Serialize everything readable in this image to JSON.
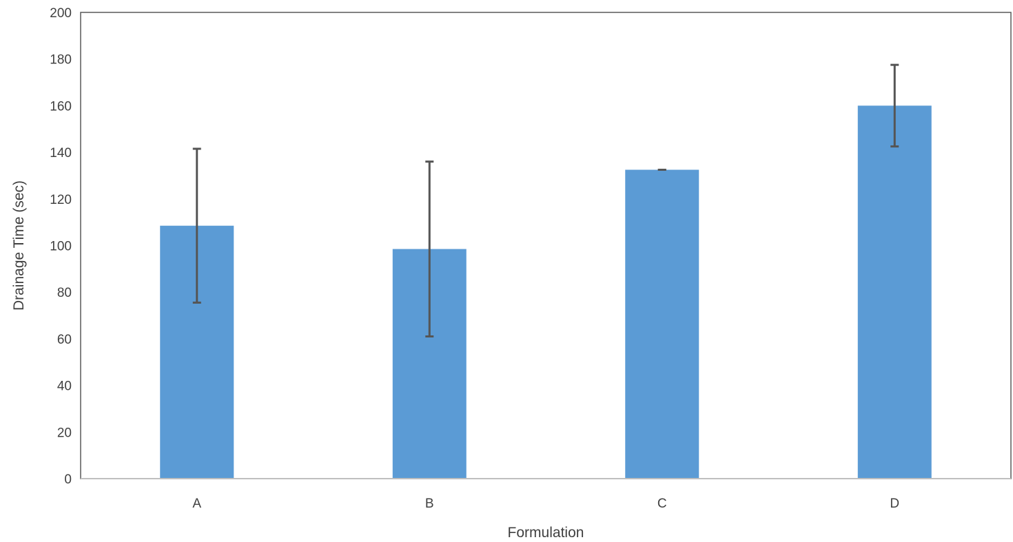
{
  "chart_data": {
    "type": "bar",
    "title": "",
    "xlabel": "Formulation",
    "ylabel": "Drainage Time (sec)",
    "categories": [
      "A",
      "B",
      "C",
      "D"
    ],
    "values": [
      108.5,
      98.5,
      132.5,
      160
    ],
    "error": [
      33,
      37.5,
      0,
      17.5
    ],
    "ylim": [
      0,
      200
    ],
    "yticks": [
      0,
      20,
      40,
      60,
      80,
      100,
      120,
      140,
      160,
      180,
      200
    ],
    "grid": false,
    "legend": "none",
    "colors": {
      "bar": "#5B9BD5",
      "error_bar": "#555555",
      "axis": "#bfbfbf",
      "frame": "#595959",
      "text": "#404040"
    }
  }
}
